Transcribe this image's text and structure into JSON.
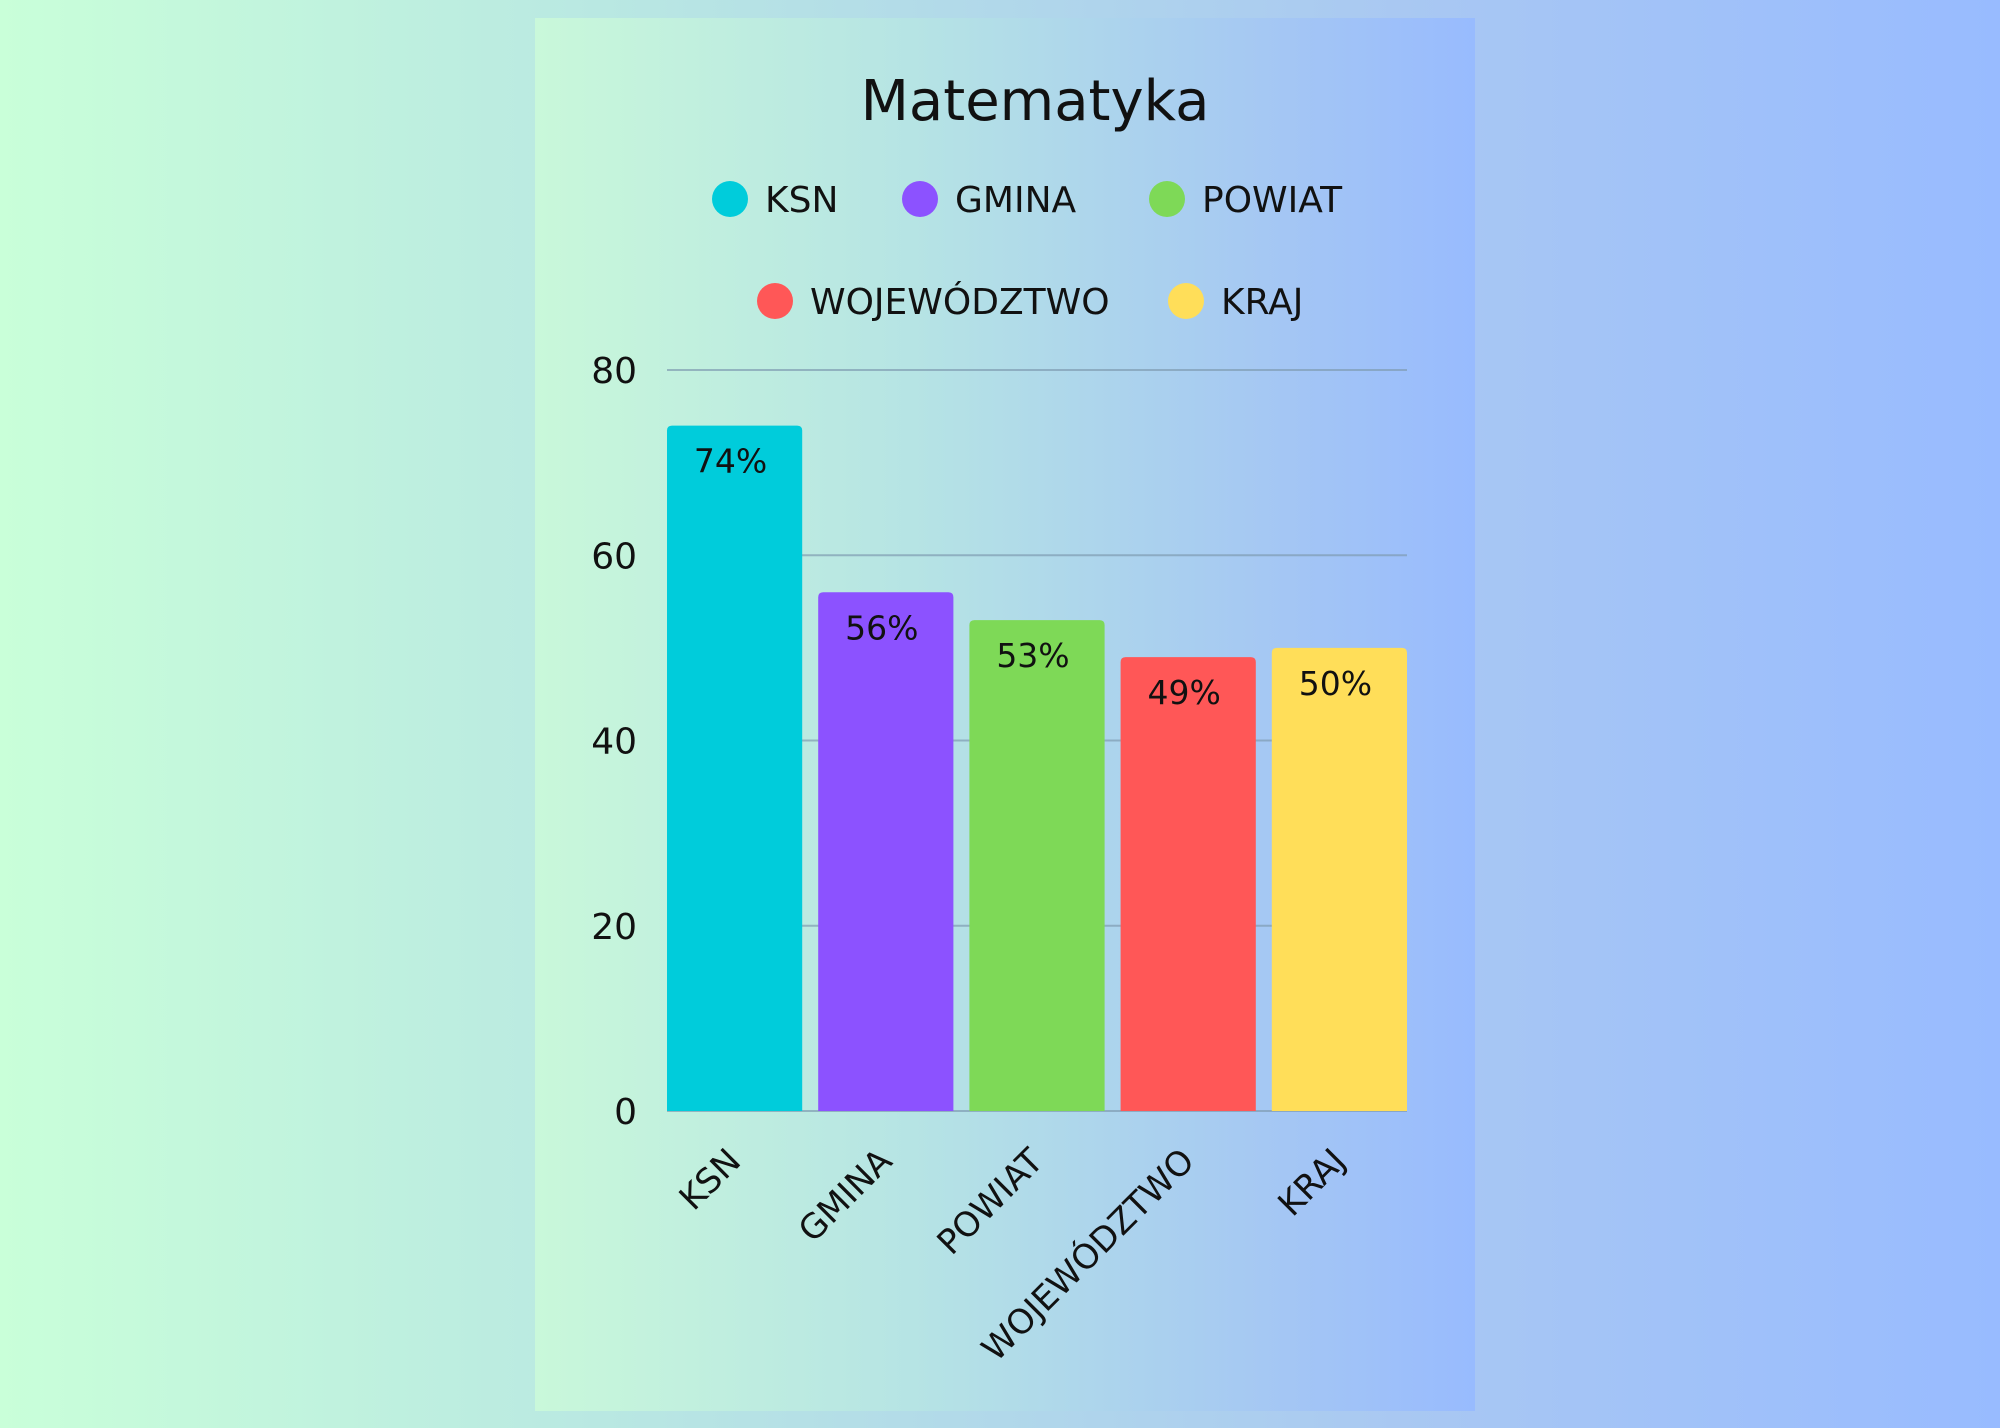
{
  "chart_data": {
    "type": "bar",
    "title": "Matematyka",
    "categories": [
      "KSN",
      "GMINA",
      "POWIAT",
      "WOJEWÓDZTWO",
      "KRAJ"
    ],
    "values": [
      74,
      56,
      53,
      49,
      50
    ],
    "value_labels": [
      "74%",
      "56%",
      "53%",
      "49%",
      "50%"
    ],
    "colors": [
      "#00CCDB",
      "#8C52FF",
      "#7ED957",
      "#FF5757",
      "#FFDE59"
    ],
    "legend": {
      "placement": "top",
      "entries": [
        "KSN",
        "GMINA",
        "POWIAT",
        "WOJEWÓDZTWO",
        "KRAJ"
      ]
    },
    "ylim": [
      0,
      80
    ],
    "yticks": [
      0,
      20,
      40,
      60,
      80
    ],
    "grid": true,
    "xlabel": "",
    "ylabel": ""
  }
}
